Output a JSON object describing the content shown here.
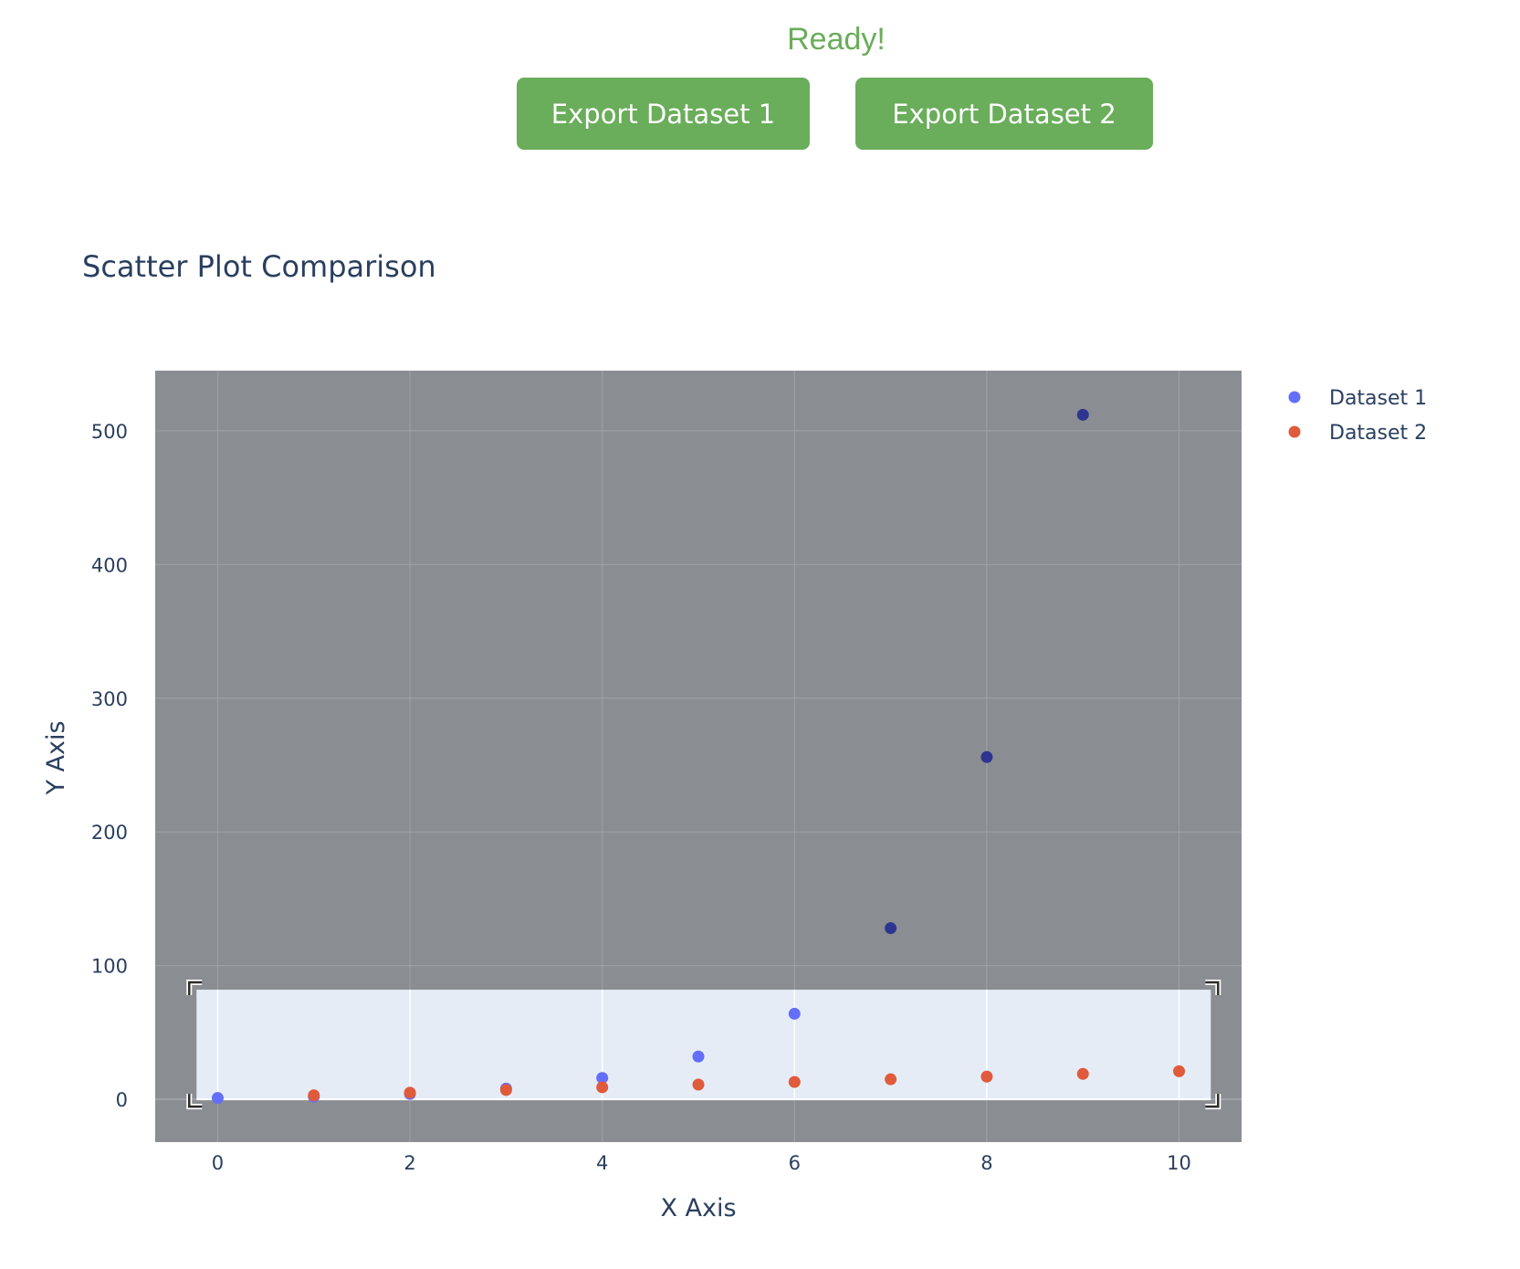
{
  "status_text": "Ready!",
  "buttons": {
    "export1": "Export Dataset 1",
    "export2": "Export Dataset 2"
  },
  "colors": {
    "accent": "#6aad5a",
    "dataset1": "#636efa",
    "dataset1_dimmed": "#2e3590",
    "dataset2": "#e05a3c",
    "plot_bg": "#8a8d91",
    "selection_bg": "#e5ecf6"
  },
  "chart_data": {
    "type": "scatter",
    "title": "Scatter Plot Comparison",
    "xlabel": "X Axis",
    "ylabel": "Y Axis",
    "xlim": [
      -0.65,
      10.65
    ],
    "ylim": [
      -32,
      545
    ],
    "xticks": [
      0,
      2,
      4,
      6,
      8,
      10
    ],
    "yticks": [
      0,
      100,
      200,
      300,
      400,
      500
    ],
    "grid": true,
    "legend": "top-right",
    "selection": {
      "x": [
        -0.22,
        10.33
      ],
      "y": [
        0,
        82
      ]
    },
    "series": [
      {
        "name": "Dataset 1",
        "x": [
          0,
          1,
          2,
          3,
          4,
          5,
          6,
          7,
          8,
          9
        ],
        "y": [
          1,
          2,
          4,
          8,
          16,
          32,
          64,
          128,
          256,
          512
        ]
      },
      {
        "name": "Dataset 2",
        "x": [
          1,
          2,
          3,
          4,
          5,
          6,
          7,
          8,
          9,
          10
        ],
        "y": [
          3,
          5,
          7,
          9,
          11,
          13,
          15,
          17,
          19,
          21
        ]
      }
    ]
  }
}
